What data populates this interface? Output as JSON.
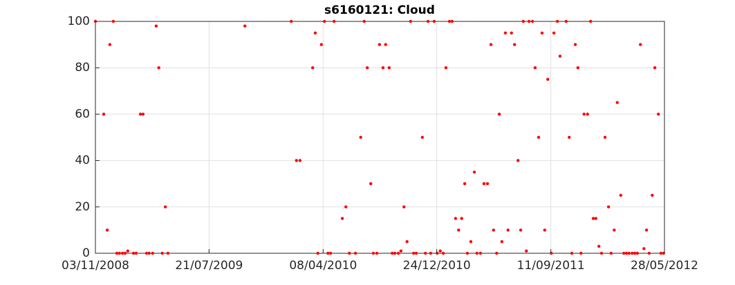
{
  "chart_data": {
    "type": "scatter",
    "title": "s6160121: Cloud",
    "color": "#ff0000",
    "grid": true,
    "xlim": [
      "03/11/2008",
      "28/05/2012"
    ],
    "xticks": [
      "03/11/2008",
      "21/07/2009",
      "08/04/2010",
      "24/12/2010",
      "11/09/2011",
      "28/05/2012"
    ],
    "ylim": [
      0,
      100
    ],
    "yticks": [
      0,
      20,
      40,
      60,
      80,
      100
    ],
    "x": [
      "03/11/2008",
      "22/11/2008",
      "30/11/2008",
      "06/12/2008",
      "14/12/2008",
      "22/12/2008",
      "28/12/2008",
      "04/01/2009",
      "10/01/2009",
      "16/01/2009",
      "29/01/2009",
      "04/02/2009",
      "14/02/2009",
      "20/02/2009",
      "28/02/2009",
      "06/03/2009",
      "14/03/2009",
      "22/03/2009",
      "28/03/2009",
      "05/04/2009",
      "12/04/2009",
      "18/04/2009",
      "11/10/2009",
      "25/01/2010",
      "06/02/2010",
      "14/02/2010",
      "15/03/2010",
      "21/03/2010",
      "27/03/2010",
      "04/04/2010",
      "11/04/2010",
      "19/04/2010",
      "25/04/2010",
      "03/05/2010",
      "22/05/2010",
      "30/05/2010",
      "07/06/2010",
      "21/06/2010",
      "03/07/2010",
      "11/07/2010",
      "18/07/2010",
      "26/07/2010",
      "01/08/2010",
      "09/08/2010",
      "15/08/2010",
      "23/08/2010",
      "29/08/2010",
      "06/09/2010",
      "13/09/2010",
      "19/09/2010",
      "27/09/2010",
      "03/10/2010",
      "10/10/2010",
      "17/10/2010",
      "25/10/2010",
      "01/11/2010",
      "07/11/2010",
      "21/11/2010",
      "28/11/2010",
      "04/12/2010",
      "10/12/2010",
      "18/12/2010",
      "25/12/2010",
      "01/01/2011",
      "08/01/2011",
      "14/01/2011",
      "22/01/2011",
      "28/01/2011",
      "05/02/2011",
      "12/02/2011",
      "19/02/2011",
      "26/02/2011",
      "04/03/2011",
      "12/03/2011",
      "20/03/2011",
      "26/03/2011",
      "03/04/2011",
      "11/04/2011",
      "19/04/2011",
      "27/04/2011",
      "03/05/2011",
      "10/05/2011",
      "16/05/2011",
      "22/05/2011",
      "30/05/2011",
      "05/06/2011",
      "13/06/2011",
      "20/06/2011",
      "28/06/2011",
      "04/07/2011",
      "10/07/2011",
      "17/07/2011",
      "23/07/2011",
      "31/07/2011",
      "06/08/2011",
      "14/08/2011",
      "22/08/2011",
      "28/08/2011",
      "04/09/2011",
      "12/09/2011",
      "18/09/2011",
      "26/09/2011",
      "02/10/2011",
      "16/10/2011",
      "23/10/2011",
      "29/10/2011",
      "06/11/2011",
      "12/11/2011",
      "19/11/2011",
      "26/11/2011",
      "04/12/2011",
      "11/12/2011",
      "17/12/2011",
      "23/12/2011",
      "30/12/2011",
      "05/01/2012",
      "13/01/2012",
      "21/01/2012",
      "27/01/2012",
      "03/02/2012",
      "10/02/2012",
      "18/02/2012",
      "25/02/2012",
      "02/03/2012",
      "08/03/2012",
      "15/03/2012",
      "21/03/2012",
      "27/03/2012",
      "03/04/2012",
      "11/04/2012",
      "17/04/2012",
      "23/04/2012",
      "30/04/2012",
      "06/05/2012",
      "14/05/2012",
      "20/05/2012",
      "26/05/2012"
    ],
    "values": [
      100,
      60,
      10,
      90,
      100,
      0,
      0,
      0,
      0,
      1,
      0,
      0,
      60,
      60,
      0,
      0,
      0,
      98,
      80,
      0,
      20,
      0,
      98,
      100,
      40,
      40,
      80,
      95,
      0,
      90,
      100,
      0,
      0,
      100,
      15,
      20,
      0,
      0,
      50,
      100,
      80,
      30,
      0,
      0,
      90,
      80,
      90,
      80,
      0,
      0,
      0,
      1,
      20,
      5,
      100,
      0,
      0,
      50,
      0,
      100,
      0,
      100,
      0,
      1,
      0,
      80,
      100,
      100,
      15,
      10,
      15,
      30,
      0,
      5,
      35,
      0,
      0,
      30,
      30,
      90,
      10,
      0,
      60,
      5,
      95,
      10,
      95,
      90,
      40,
      10,
      100,
      1,
      100,
      100,
      80,
      50,
      95,
      10,
      75,
      0,
      95,
      100,
      85,
      100,
      50,
      0,
      90,
      80,
      0,
      60,
      60,
      100,
      15,
      15,
      3,
      0,
      50,
      20,
      0,
      10,
      65,
      25,
      0,
      0,
      0,
      0,
      0,
      0,
      90,
      2,
      10,
      0,
      25,
      80,
      60,
      0,
      0
    ]
  }
}
